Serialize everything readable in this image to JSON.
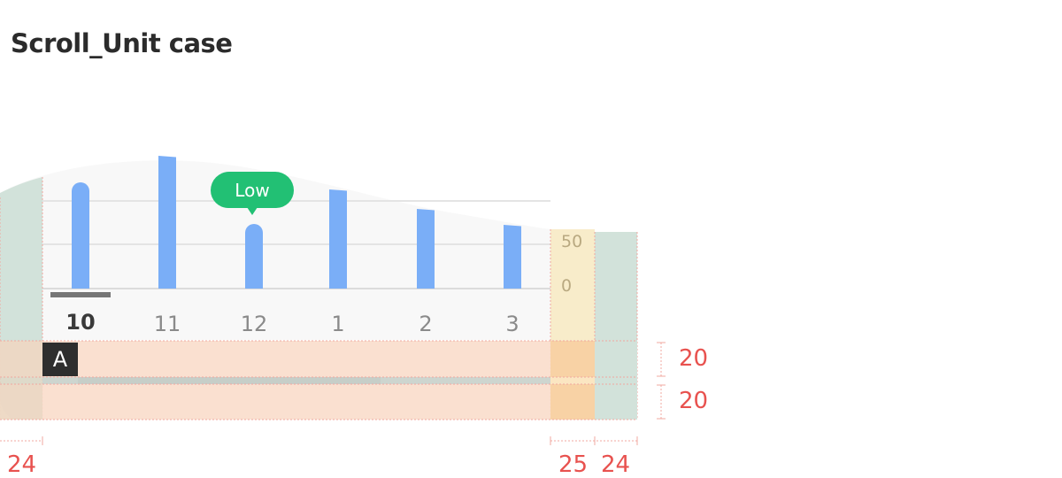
{
  "page": {
    "title": "Scroll_Unit case"
  },
  "chart_data": {
    "type": "bar",
    "categories": [
      "10",
      "11",
      "12",
      "1",
      "2",
      "3"
    ],
    "selected_category": "10",
    "values": [
      120,
      150,
      73,
      112,
      90,
      72
    ],
    "ylim": [
      0,
      150
    ],
    "y_ticks": [
      "50",
      "0"
    ],
    "tooltip": {
      "label": "Low",
      "category": "12"
    },
    "bar_color": "#7aaef7"
  },
  "scroll_badge": {
    "label": "A"
  },
  "dimensions": {
    "left_margin": "24",
    "axis_width": "25",
    "right_margin": "24",
    "row_height_top": "20",
    "row_height_bottom": "20"
  },
  "colors": {
    "guide_green": "#d2e2da",
    "guide_orange": "#f9ddcb",
    "guide_yellow": "#f8ecca",
    "tooltip_green": "#22c074",
    "dimension_red": "#e8524f"
  }
}
